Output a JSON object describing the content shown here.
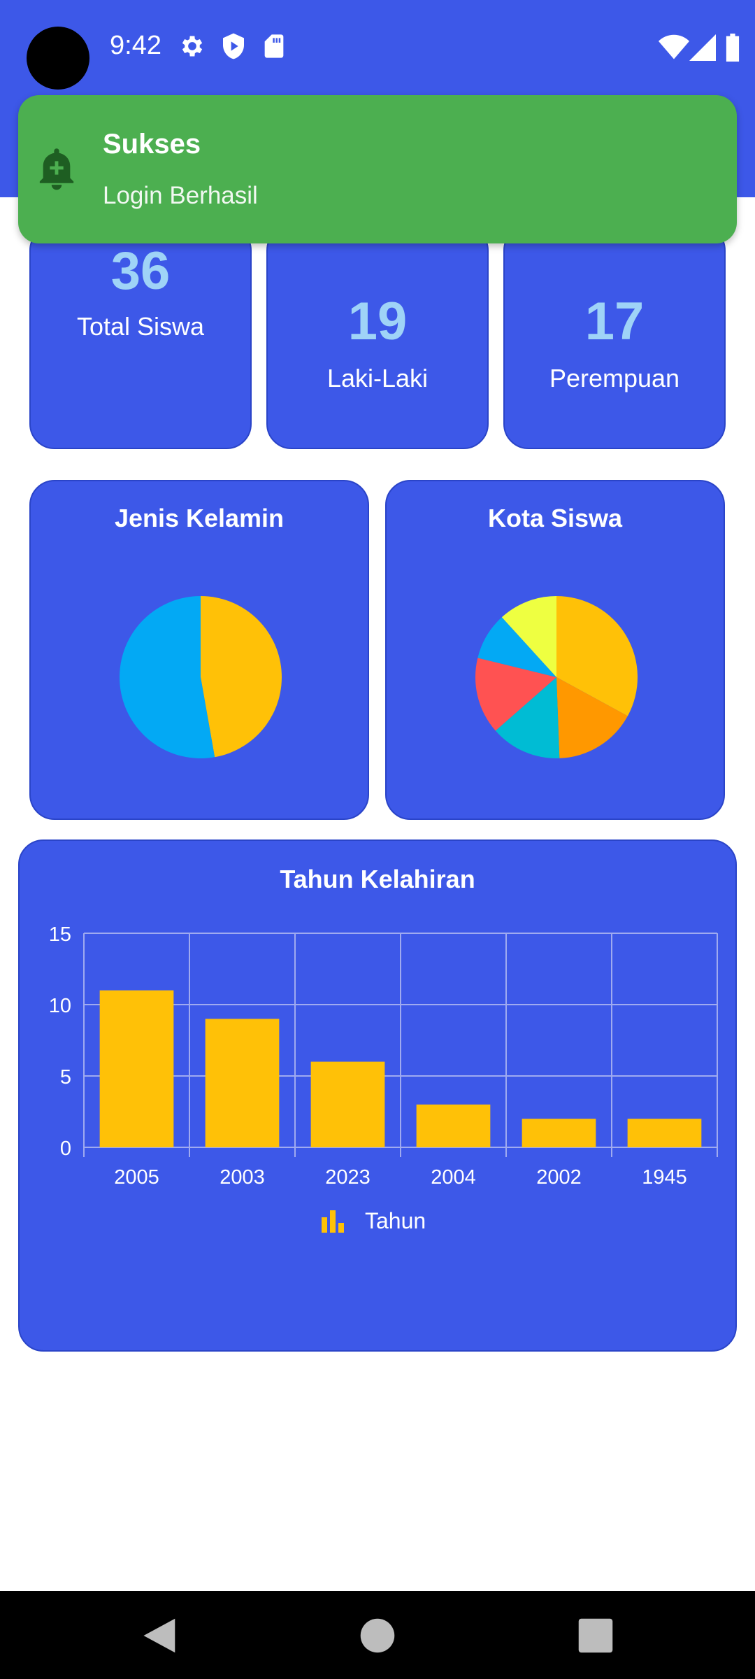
{
  "status_bar": {
    "time": "9:42",
    "left_icons": [
      "gear-icon",
      "shield-icon",
      "sd-card-icon"
    ],
    "right_icons": [
      "wifi-icon",
      "signal-icon",
      "battery-icon"
    ]
  },
  "toast": {
    "icon": "bell-plus-icon",
    "title": "Sukses",
    "message": "Login Berhasil"
  },
  "stats": [
    {
      "value": "36",
      "label": "Total Siswa"
    },
    {
      "value": "19",
      "label": "Laki-Laki"
    },
    {
      "value": "17",
      "label": "Perempuan"
    }
  ],
  "colors": {
    "primary": "#3D58E8",
    "accent_value": "#9FD3F7",
    "toast": "#4CAF50",
    "bar": "#FFC107"
  },
  "chart_data": [
    {
      "type": "pie",
      "title": "Jenis Kelamin",
      "slices": [
        {
          "value": 17,
          "color": "#FFC107"
        },
        {
          "value": 19,
          "color": "#03A9F4"
        }
      ]
    },
    {
      "type": "pie",
      "title": "Kota Siswa",
      "slices": [
        {
          "value": 28,
          "color": "#FFC107"
        },
        {
          "value": 14,
          "color": "#FF9800"
        },
        {
          "value": 12,
          "color": "#00BCD4"
        },
        {
          "value": 13,
          "color": "#FF5252"
        },
        {
          "value": 8,
          "color": "#03A9F4"
        },
        {
          "value": 10,
          "color": "#EEFF41"
        }
      ]
    },
    {
      "type": "bar",
      "title": "Tahun Kelahiran",
      "categories": [
        "2005",
        "2003",
        "2023",
        "2004",
        "2002",
        "1945"
      ],
      "series": [
        {
          "name": "Tahun",
          "values": [
            11,
            9,
            6,
            3,
            2,
            2
          ],
          "color": "#FFC107"
        }
      ],
      "ylim": [
        0,
        15
      ],
      "yticks": [
        "0",
        "5",
        "10",
        "15"
      ],
      "grid": true,
      "legend": "bottom-center"
    }
  ],
  "nav_bar": [
    "back-icon",
    "home-icon",
    "recents-icon"
  ]
}
